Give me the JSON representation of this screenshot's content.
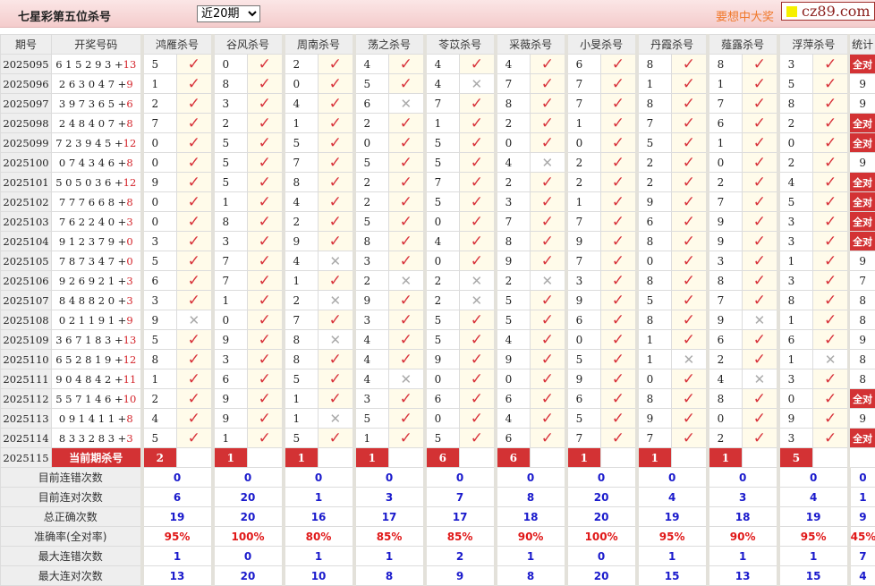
{
  "header": {
    "title": "七星彩第五位杀号",
    "period_select": "近20期",
    "slogan": "要想中大奖",
    "brand": "cz89.com"
  },
  "colors": {
    "accent": "#d33234",
    "check": "#d8333b",
    "stat_blue": "#1a1acc",
    "rate_red": "#e01818",
    "slogan": "#f0792c"
  },
  "columns": {
    "issue": "期号",
    "draw": "开奖号码",
    "experts": [
      "鸿雁杀号",
      "谷风杀号",
      "周南杀号",
      "荡之杀号",
      "苓苡杀号",
      "采薇杀号",
      "小旻杀号",
      "丹霞杀号",
      "薤露杀号",
      "浮萍杀号"
    ],
    "stats": "统计"
  },
  "icons": {
    "ok": "check-icon",
    "bad": "cross-icon"
  },
  "rows": [
    {
      "issue": "2025095",
      "draw": "6 1 5 2 9 3",
      "special": "13",
      "kills": [
        5,
        0,
        2,
        4,
        4,
        4,
        6,
        8,
        8,
        3
      ],
      "ok": [
        1,
        1,
        1,
        1,
        1,
        1,
        1,
        1,
        1,
        1
      ],
      "stat": "全对"
    },
    {
      "issue": "2025096",
      "draw": "2 6 3 0 4 7",
      "special": "9",
      "kills": [
        1,
        8,
        0,
        5,
        4,
        7,
        7,
        1,
        1,
        5
      ],
      "ok": [
        1,
        1,
        1,
        1,
        0,
        1,
        1,
        1,
        1,
        1
      ],
      "stat": "9"
    },
    {
      "issue": "2025097",
      "draw": "3 9 7 3 6 5",
      "special": "6",
      "kills": [
        2,
        3,
        4,
        6,
        7,
        8,
        7,
        8,
        7,
        8
      ],
      "ok": [
        1,
        1,
        1,
        0,
        1,
        1,
        1,
        1,
        1,
        1
      ],
      "stat": "9"
    },
    {
      "issue": "2025098",
      "draw": "2 4 8 4 0 7",
      "special": "8",
      "kills": [
        7,
        2,
        1,
        2,
        1,
        2,
        1,
        7,
        6,
        2
      ],
      "ok": [
        1,
        1,
        1,
        1,
        1,
        1,
        1,
        1,
        1,
        1
      ],
      "stat": "全对"
    },
    {
      "issue": "2025099",
      "draw": "7 2 3 9 4 5",
      "special": "12",
      "kills": [
        0,
        5,
        5,
        0,
        5,
        0,
        0,
        5,
        1,
        0
      ],
      "ok": [
        1,
        1,
        1,
        1,
        1,
        1,
        1,
        1,
        1,
        1
      ],
      "stat": "全对"
    },
    {
      "issue": "2025100",
      "draw": "0 7 4 3 4 6",
      "special": "8",
      "kills": [
        0,
        5,
        7,
        5,
        5,
        4,
        2,
        2,
        0,
        2
      ],
      "ok": [
        1,
        1,
        1,
        1,
        1,
        0,
        1,
        1,
        1,
        1
      ],
      "stat": "9"
    },
    {
      "issue": "2025101",
      "draw": "5 0 5 0 3 6",
      "special": "12",
      "kills": [
        9,
        5,
        8,
        2,
        7,
        2,
        2,
        2,
        2,
        4
      ],
      "ok": [
        1,
        1,
        1,
        1,
        1,
        1,
        1,
        1,
        1,
        1
      ],
      "stat": "全对"
    },
    {
      "issue": "2025102",
      "draw": "7 7 7 6 6 8",
      "special": "8",
      "kills": [
        0,
        1,
        4,
        2,
        5,
        3,
        1,
        9,
        7,
        5
      ],
      "ok": [
        1,
        1,
        1,
        1,
        1,
        1,
        1,
        1,
        1,
        1
      ],
      "stat": "全对"
    },
    {
      "issue": "2025103",
      "draw": "7 6 2 2 4 0",
      "special": "3",
      "kills": [
        0,
        8,
        2,
        5,
        0,
        7,
        7,
        6,
        9,
        3
      ],
      "ok": [
        1,
        1,
        1,
        1,
        1,
        1,
        1,
        1,
        1,
        1
      ],
      "stat": "全对"
    },
    {
      "issue": "2025104",
      "draw": "9 1 2 3 7 9",
      "special": "0",
      "kills": [
        3,
        3,
        9,
        8,
        4,
        8,
        9,
        8,
        9,
        3
      ],
      "ok": [
        1,
        1,
        1,
        1,
        1,
        1,
        1,
        1,
        1,
        1
      ],
      "stat": "全对"
    },
    {
      "issue": "2025105",
      "draw": "7 8 7 3 4 7",
      "special": "0",
      "kills": [
        5,
        7,
        4,
        3,
        0,
        9,
        7,
        0,
        3,
        1
      ],
      "ok": [
        1,
        1,
        0,
        1,
        1,
        1,
        1,
        1,
        1,
        1
      ],
      "stat": "9"
    },
    {
      "issue": "2025106",
      "draw": "9 2 6 9 2 1",
      "special": "3",
      "kills": [
        6,
        7,
        1,
        2,
        2,
        2,
        3,
        8,
        8,
        3
      ],
      "ok": [
        1,
        1,
        1,
        0,
        0,
        0,
        1,
        1,
        1,
        1
      ],
      "stat": "7"
    },
    {
      "issue": "2025107",
      "draw": "8 4 8 8 2 0",
      "special": "3",
      "kills": [
        3,
        1,
        2,
        9,
        2,
        5,
        9,
        5,
        7,
        8
      ],
      "ok": [
        1,
        1,
        0,
        1,
        0,
        1,
        1,
        1,
        1,
        1
      ],
      "stat": "8"
    },
    {
      "issue": "2025108",
      "draw": "0 2 1 1 9 1",
      "special": "9",
      "kills": [
        9,
        0,
        7,
        3,
        5,
        5,
        6,
        8,
        9,
        1
      ],
      "ok": [
        0,
        1,
        1,
        1,
        1,
        1,
        1,
        1,
        0,
        1
      ],
      "stat": "8"
    },
    {
      "issue": "2025109",
      "draw": "3 6 7 1 8 3",
      "special": "13",
      "kills": [
        5,
        9,
        8,
        4,
        5,
        4,
        0,
        1,
        6,
        6
      ],
      "ok": [
        1,
        1,
        0,
        1,
        1,
        1,
        1,
        1,
        1,
        1
      ],
      "stat": "9"
    },
    {
      "issue": "2025110",
      "draw": "6 5 2 8 1 9",
      "special": "12",
      "kills": [
        8,
        3,
        8,
        4,
        9,
        9,
        5,
        1,
        2,
        1
      ],
      "ok": [
        1,
        1,
        1,
        1,
        1,
        1,
        1,
        0,
        1,
        0
      ],
      "stat": "8"
    },
    {
      "issue": "2025111",
      "draw": "9 0 4 8 4 2",
      "special": "11",
      "kills": [
        1,
        6,
        5,
        4,
        0,
        0,
        9,
        0,
        4,
        3
      ],
      "ok": [
        1,
        1,
        1,
        0,
        1,
        1,
        1,
        1,
        0,
        1
      ],
      "stat": "8"
    },
    {
      "issue": "2025112",
      "draw": "5 5 7 1 4 6",
      "special": "10",
      "kills": [
        2,
        9,
        1,
        3,
        6,
        6,
        6,
        8,
        8,
        0
      ],
      "ok": [
        1,
        1,
        1,
        1,
        1,
        1,
        1,
        1,
        1,
        1
      ],
      "stat": "全对"
    },
    {
      "issue": "2025113",
      "draw": "0 9 1 4 1 1",
      "special": "8",
      "kills": [
        4,
        9,
        1,
        5,
        0,
        4,
        5,
        9,
        0,
        9
      ],
      "ok": [
        1,
        1,
        0,
        1,
        1,
        1,
        1,
        1,
        1,
        1
      ],
      "stat": "9"
    },
    {
      "issue": "2025114",
      "draw": "8 3 3 2 8 3",
      "special": "3",
      "kills": [
        5,
        1,
        5,
        1,
        5,
        6,
        7,
        7,
        2,
        3
      ],
      "ok": [
        1,
        1,
        1,
        1,
        1,
        1,
        1,
        1,
        1,
        1
      ],
      "stat": "全对"
    }
  ],
  "current": {
    "issue": "2025115",
    "label": "当前期杀号",
    "kills": [
      2,
      1,
      1,
      1,
      6,
      6,
      1,
      1,
      1,
      5
    ]
  },
  "summary": [
    {
      "label": "目前连错次数",
      "values": [
        "0",
        "0",
        "0",
        "0",
        "0",
        "0",
        "0",
        "0",
        "0",
        "0"
      ],
      "total": "0"
    },
    {
      "label": "目前连对次数",
      "values": [
        "6",
        "20",
        "1",
        "3",
        "7",
        "8",
        "20",
        "4",
        "3",
        "4"
      ],
      "total": "1"
    },
    {
      "label": "总正确次数",
      "values": [
        "19",
        "20",
        "16",
        "17",
        "17",
        "18",
        "20",
        "19",
        "18",
        "19"
      ],
      "total": "9"
    },
    {
      "label": "准确率(全对率)",
      "values": [
        "95%",
        "100%",
        "80%",
        "85%",
        "85%",
        "90%",
        "100%",
        "95%",
        "90%",
        "95%"
      ],
      "total": "45%",
      "rate": true
    },
    {
      "label": "最大连错次数",
      "values": [
        "1",
        "0",
        "1",
        "1",
        "2",
        "1",
        "0",
        "1",
        "1",
        "1"
      ],
      "total": "7"
    },
    {
      "label": "最大连对次数",
      "values": [
        "13",
        "20",
        "10",
        "8",
        "9",
        "8",
        "20",
        "15",
        "13",
        "15"
      ],
      "total": "4"
    }
  ]
}
